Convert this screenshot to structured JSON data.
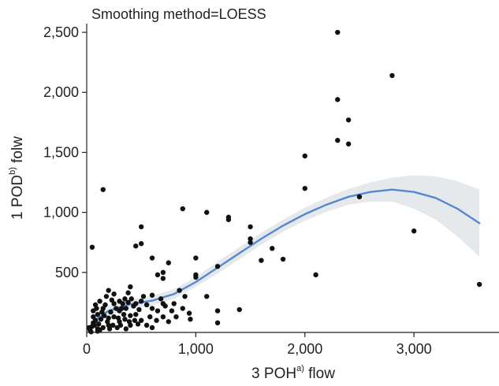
{
  "chart_data": {
    "type": "scatter",
    "title": "Smoothing method=LOESS",
    "xlabel": {
      "pre": "3 POH",
      "sup": "a)",
      "post": " flow"
    },
    "ylabel": {
      "pre": "1 POD",
      "sup": "b)",
      "post": " folw"
    },
    "xlim": [
      0,
      3700
    ],
    "ylim": [
      0,
      2520
    ],
    "xticks": [
      0,
      1000,
      2000,
      3000
    ],
    "xtick_labels": [
      "0",
      "1,000",
      "2,000",
      "3,000"
    ],
    "yticks": [
      500,
      1000,
      1500,
      2000,
      2500
    ],
    "ytick_labels": [
      "500",
      "1,000",
      "1,500",
      "2,000",
      "2,500"
    ],
    "grid": false,
    "colors": {
      "points": "#111111",
      "curve": "#5588cc",
      "band": "#e6e9eb"
    },
    "points": [
      [
        2300,
        2500
      ],
      [
        2800,
        2140
      ],
      [
        2300,
        1940
      ],
      [
        2400,
        1770
      ],
      [
        2300,
        1600
      ],
      [
        2400,
        1570
      ],
      [
        2000,
        1470
      ],
      [
        2000,
        1200
      ],
      [
        2500,
        1130
      ],
      [
        3000,
        845
      ],
      [
        3600,
        400
      ],
      [
        2100,
        480
      ],
      [
        1800,
        610
      ],
      [
        1700,
        700
      ],
      [
        1600,
        600
      ],
      [
        1500,
        780
      ],
      [
        1500,
        750
      ],
      [
        1500,
        880
      ],
      [
        1300,
        960
      ],
      [
        1300,
        940
      ],
      [
        1100,
        1000
      ],
      [
        880,
        1030
      ],
      [
        150,
        1190
      ],
      [
        50,
        710
      ],
      [
        500,
        880
      ],
      [
        450,
        720
      ],
      [
        500,
        740
      ],
      [
        600,
        620
      ],
      [
        750,
        580
      ],
      [
        1000,
        620
      ],
      [
        1000,
        480
      ],
      [
        1000,
        460
      ],
      [
        1200,
        550
      ],
      [
        1100,
        300
      ],
      [
        1200,
        180
      ],
      [
        1400,
        190
      ],
      [
        1200,
        80
      ],
      [
        900,
        300
      ],
      [
        950,
        110
      ],
      [
        850,
        350
      ],
      [
        700,
        500
      ],
      [
        650,
        480
      ],
      [
        700,
        450
      ],
      [
        800,
        240
      ],
      [
        700,
        240
      ],
      [
        600,
        200
      ],
      [
        500,
        100
      ],
      [
        450,
        150
      ],
      [
        400,
        380
      ],
      [
        350,
        280
      ],
      [
        380,
        330
      ],
      [
        300,
        260
      ],
      [
        250,
        240
      ],
      [
        200,
        350
      ],
      [
        150,
        200
      ],
      [
        100,
        150
      ],
      [
        80,
        100
      ],
      [
        60,
        80
      ],
      [
        50,
        50
      ],
      [
        30,
        20
      ],
      [
        120,
        20
      ],
      [
        200,
        60
      ],
      [
        250,
        130
      ],
      [
        300,
        180
      ],
      [
        350,
        110
      ],
      [
        400,
        60
      ],
      [
        450,
        240
      ],
      [
        500,
        260
      ],
      [
        550,
        230
      ],
      [
        600,
        310
      ],
      [
        650,
        180
      ],
      [
        700,
        130
      ],
      [
        750,
        90
      ],
      [
        550,
        60
      ],
      [
        600,
        40
      ],
      [
        400,
        140
      ],
      [
        300,
        90
      ],
      [
        200,
        120
      ],
      [
        150,
        40
      ],
      [
        100,
        30
      ],
      [
        90,
        200
      ],
      [
        180,
        300
      ],
      [
        250,
        320
      ],
      [
        320,
        200
      ],
      [
        380,
        250
      ],
      [
        430,
        220
      ],
      [
        480,
        190
      ],
      [
        520,
        300
      ],
      [
        580,
        130
      ],
      [
        640,
        100
      ],
      [
        680,
        280
      ],
      [
        720,
        220
      ],
      [
        780,
        180
      ],
      [
        820,
        130
      ],
      [
        880,
        200
      ],
      [
        940,
        160
      ],
      [
        60,
        130
      ],
      [
        70,
        60
      ],
      [
        110,
        70
      ],
      [
        130,
        110
      ],
      [
        160,
        140
      ],
      [
        190,
        90
      ],
      [
        220,
        170
      ],
      [
        240,
        60
      ],
      [
        270,
        200
      ],
      [
        290,
        120
      ],
      [
        310,
        60
      ],
      [
        340,
        150
      ],
      [
        360,
        200
      ],
      [
        390,
        90
      ],
      [
        410,
        280
      ],
      [
        440,
        100
      ],
      [
        470,
        70
      ],
      [
        330,
        240
      ],
      [
        230,
        270
      ],
      [
        170,
        230
      ],
      [
        120,
        260
      ],
      [
        80,
        230
      ],
      [
        60,
        180
      ],
      [
        210,
        30
      ],
      [
        280,
        40
      ],
      [
        360,
        30
      ],
      [
        100,
        10
      ],
      [
        40,
        5
      ],
      [
        20,
        40
      ],
      [
        140,
        170
      ]
    ],
    "loess": [
      [
        60,
        90
      ],
      [
        200,
        180
      ],
      [
        400,
        235
      ],
      [
        600,
        265
      ],
      [
        800,
        320
      ],
      [
        1000,
        420
      ],
      [
        1200,
        540
      ],
      [
        1400,
        660
      ],
      [
        1600,
        780
      ],
      [
        1800,
        890
      ],
      [
        2000,
        985
      ],
      [
        2200,
        1065
      ],
      [
        2400,
        1130
      ],
      [
        2600,
        1170
      ],
      [
        2800,
        1190
      ],
      [
        3000,
        1170
      ],
      [
        3200,
        1120
      ],
      [
        3400,
        1030
      ],
      [
        3600,
        910
      ]
    ],
    "band_upper": [
      [
        60,
        140
      ],
      [
        200,
        220
      ],
      [
        400,
        275
      ],
      [
        600,
        305
      ],
      [
        800,
        360
      ],
      [
        1000,
        460
      ],
      [
        1200,
        590
      ],
      [
        1400,
        710
      ],
      [
        1600,
        830
      ],
      [
        1800,
        940
      ],
      [
        2000,
        1040
      ],
      [
        2200,
        1125
      ],
      [
        2400,
        1195
      ],
      [
        2600,
        1250
      ],
      [
        2800,
        1290
      ],
      [
        3000,
        1310
      ],
      [
        3200,
        1300
      ],
      [
        3400,
        1260
      ],
      [
        3600,
        1190
      ]
    ],
    "band_lower": [
      [
        60,
        40
      ],
      [
        200,
        140
      ],
      [
        400,
        195
      ],
      [
        600,
        225
      ],
      [
        800,
        280
      ],
      [
        1000,
        380
      ],
      [
        1200,
        490
      ],
      [
        1400,
        610
      ],
      [
        1600,
        730
      ],
      [
        1800,
        840
      ],
      [
        2000,
        930
      ],
      [
        2200,
        1005
      ],
      [
        2400,
        1065
      ],
      [
        2600,
        1090
      ],
      [
        2800,
        1090
      ],
      [
        3000,
        1030
      ],
      [
        3200,
        940
      ],
      [
        3400,
        800
      ],
      [
        3600,
        630
      ]
    ]
  }
}
